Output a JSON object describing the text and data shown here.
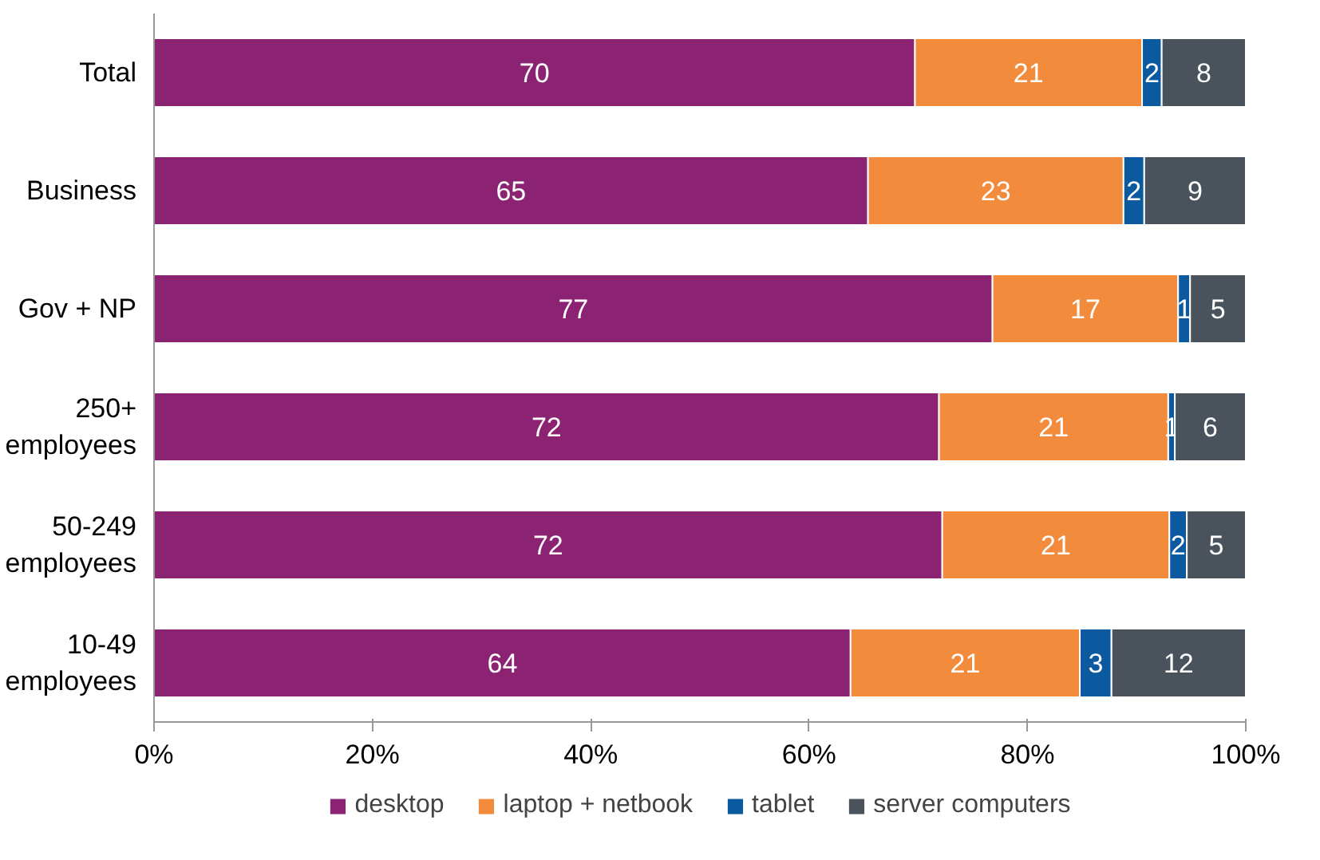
{
  "chart_data": {
    "type": "bar",
    "orientation": "horizontal",
    "stacked": true,
    "categories": [
      "Total",
      "Business",
      "Gov + NP",
      "250+ employees",
      "50-249 employees",
      "10-49 employees"
    ],
    "series": [
      {
        "name": "desktop",
        "color": "#8b2372",
        "values": [
          69.7,
          65.4,
          76.8,
          71.9,
          72.2,
          63.8
        ],
        "value_labels": [
          "70",
          "65",
          "77",
          "72",
          "72",
          "64"
        ]
      },
      {
        "name": "laptop + netbook",
        "color": "#f28b3c",
        "values": [
          20.8,
          23.4,
          17.0,
          21.0,
          20.8,
          21.0
        ],
        "value_labels": [
          "21",
          "23",
          "17",
          "21",
          "21",
          "21"
        ]
      },
      {
        "name": "tablet",
        "color": "#0b5aa0",
        "values": [
          1.8,
          1.9,
          1.1,
          0.6,
          1.6,
          2.9
        ],
        "value_labels": [
          "2",
          "2",
          "1",
          "1",
          "2",
          "3"
        ]
      },
      {
        "name": "server computers",
        "color": "#4a535c",
        "values": [
          7.7,
          9.3,
          5.1,
          6.5,
          5.4,
          12.3
        ],
        "value_labels": [
          "8",
          "9",
          "5",
          "6",
          "5",
          "12"
        ]
      }
    ],
    "xlim": [
      0,
      100
    ],
    "xticks": [
      {
        "value": 0,
        "label": "0%"
      },
      {
        "value": 20,
        "label": "20%"
      },
      {
        "value": 40,
        "label": "40%"
      },
      {
        "value": 60,
        "label": "60%"
      },
      {
        "value": 80,
        "label": "80%"
      },
      {
        "value": 100,
        "label": "100%"
      }
    ],
    "grid": false,
    "legend": "bottom"
  }
}
